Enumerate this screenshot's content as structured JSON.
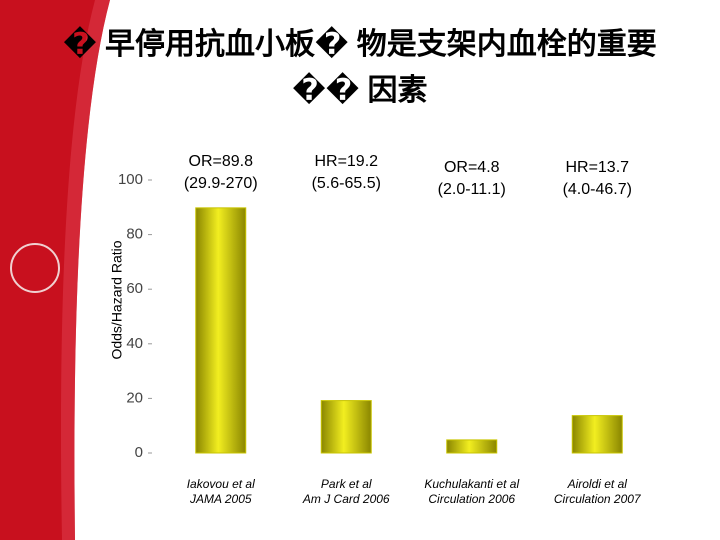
{
  "chart_data": {
    "type": "bar",
    "title_lines": [
      "� 早停用抗血小板� 物是支架内血栓的重要",
      "�� 因素"
    ],
    "ylabel": "Odds/Hazard Ratio",
    "categories": [
      "Iakovou et al",
      "Park et al",
      "Kuchulakanti et al",
      "Airoldi et al"
    ],
    "sources": [
      "JAMA 2005",
      "Am J Card 2006",
      "Circulation 2006",
      "Circulation 2007"
    ],
    "values": [
      89.8,
      19.2,
      4.8,
      13.7
    ],
    "annotations": [
      [
        "OR=89.8",
        "(29.9-270)"
      ],
      [
        "HR=19.2",
        "(5.6-65.5)"
      ],
      [
        "OR=4.8",
        "(2.0-11.1)"
      ],
      [
        "HR=13.7",
        "(4.0-46.7)"
      ]
    ],
    "color": "#c8c400",
    "ylim": [
      0,
      100
    ],
    "yticks": [
      0,
      20,
      40,
      60,
      80,
      100
    ]
  }
}
